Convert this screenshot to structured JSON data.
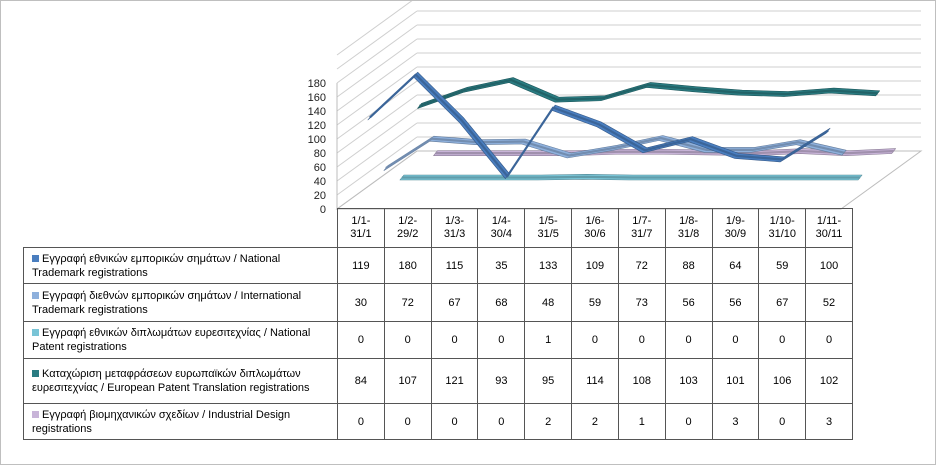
{
  "chart_data": {
    "type": "line",
    "categories": [
      "1/1-\n31/1",
      "1/2-\n29/2",
      "1/3-\n31/3",
      "1/4-\n30/4",
      "1/5-\n31/5",
      "1/6-\n30/6",
      "1/7-\n31/7",
      "1/8-\n31/8",
      "1/9-\n30/9",
      "1/10-\n31/10",
      "1/11-\n30/11"
    ],
    "y_ticks": [
      "0",
      "20",
      "40",
      "60",
      "80",
      "100",
      "120",
      "140",
      "160",
      "180"
    ],
    "ylim": [
      0,
      180
    ],
    "grid": true,
    "style": "3d",
    "legend": "table",
    "series": [
      {
        "name": "Εγγραφή  εθνικών εμπορικών σημάτων  / National Trademark registrations",
        "color": "#4a7ebf",
        "values": [
          119,
          180,
          115,
          35,
          133,
          109,
          72,
          88,
          64,
          59,
          100
        ]
      },
      {
        "name": "Εγγραφή  διεθνών εμπορικών σημάτων  / International Trademark registrations",
        "color": "#8eb0dc",
        "values": [
          30,
          72,
          67,
          68,
          48,
          59,
          73,
          56,
          56,
          67,
          52
        ]
      },
      {
        "name": "Εγγραφή  εθνικών διπλωμάτων ευρεσιτεχνίας / National Patent registrations",
        "color": "#79c4d6",
        "values": [
          0,
          0,
          0,
          0,
          1,
          0,
          0,
          0,
          0,
          0,
          0
        ]
      },
      {
        "name": "Καταχώριση μεταφράσεων  ευρωπαϊκών διπλωμάτων ευρεσιτεχνίας / European Patent Translation registrations",
        "color": "#2a7c82",
        "values": [
          84,
          107,
          121,
          93,
          95,
          114,
          108,
          103,
          101,
          106,
          102
        ]
      },
      {
        "name": "Εγγραφή  βιομηχανικών σχεδίων / Industrial Design registrations",
        "color": "#c8b4d8",
        "values": [
          0,
          0,
          0,
          0,
          2,
          2,
          1,
          0,
          3,
          0,
          3
        ]
      }
    ]
  }
}
